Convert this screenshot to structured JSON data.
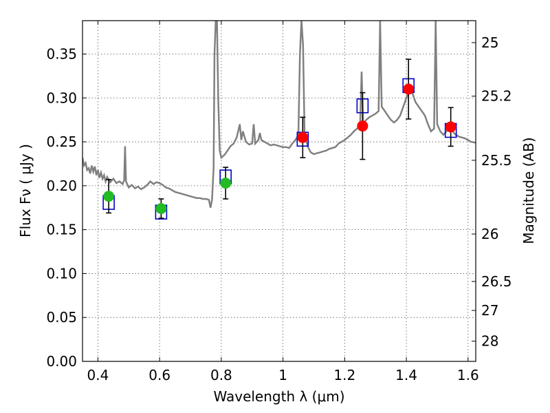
{
  "chart_data": {
    "type": "scatter",
    "xlabel": "Wavelength  λ (μm)",
    "ylabel": "Flux  Fν  ( μJy )",
    "y2label": "Magnitude (AB)",
    "xlim": [
      0.35,
      1.625
    ],
    "ylim": [
      0.0,
      0.388
    ],
    "grid": true,
    "x_ticks": [
      0.4,
      0.6,
      0.8,
      1.0,
      1.2,
      1.4,
      1.6
    ],
    "x_tick_labels": [
      "0.4",
      "0.6",
      "0.8",
      "1",
      "1.2",
      "1.4",
      "1.6"
    ],
    "y_ticks": [
      0.0,
      0.05,
      0.1,
      0.15,
      0.2,
      0.25,
      0.3,
      0.35
    ],
    "y_tick_labels": [
      "0.00",
      "0.05",
      "0.10",
      "0.15",
      "0.20",
      "0.25",
      "0.30",
      "0.35"
    ],
    "y2_ticks": [
      {
        "label": "25",
        "flux": 0.363
      },
      {
        "label": "25.2",
        "flux": 0.302
      },
      {
        "label": "25.5",
        "flux": 0.229
      },
      {
        "label": "26",
        "flux": 0.145
      },
      {
        "label": "26.5",
        "flux": 0.091
      },
      {
        "label": "27",
        "flux": 0.058
      },
      {
        "label": "28",
        "flux": 0.023
      }
    ],
    "colors": {
      "model": "#808080",
      "model_points": "#0000cc",
      "optical": "#22bb22",
      "nir": "#ff0000",
      "errorbar": "#000000",
      "grid": "#555555"
    },
    "model_spectrum": [
      [
        0.35,
        0.232
      ],
      [
        0.355,
        0.223
      ],
      [
        0.36,
        0.226
      ],
      [
        0.365,
        0.218
      ],
      [
        0.37,
        0.22
      ],
      [
        0.375,
        0.214
      ],
      [
        0.38,
        0.223
      ],
      [
        0.385,
        0.216
      ],
      [
        0.39,
        0.222
      ],
      [
        0.395,
        0.212
      ],
      [
        0.4,
        0.218
      ],
      [
        0.405,
        0.209
      ],
      [
        0.41,
        0.215
      ],
      [
        0.415,
        0.208
      ],
      [
        0.42,
        0.212
      ],
      [
        0.425,
        0.205
      ],
      [
        0.43,
        0.21
      ],
      [
        0.44,
        0.204
      ],
      [
        0.45,
        0.208
      ],
      [
        0.46,
        0.203
      ],
      [
        0.47,
        0.205
      ],
      [
        0.48,
        0.202
      ],
      [
        0.485,
        0.206
      ],
      [
        0.488,
        0.245
      ],
      [
        0.491,
        0.205
      ],
      [
        0.5,
        0.198
      ],
      [
        0.51,
        0.201
      ],
      [
        0.52,
        0.197
      ],
      [
        0.53,
        0.199
      ],
      [
        0.54,
        0.196
      ],
      [
        0.55,
        0.198
      ],
      [
        0.56,
        0.201
      ],
      [
        0.57,
        0.205
      ],
      [
        0.58,
        0.202
      ],
      [
        0.59,
        0.204
      ],
      [
        0.6,
        0.203
      ],
      [
        0.61,
        0.201
      ],
      [
        0.62,
        0.198
      ],
      [
        0.63,
        0.197
      ],
      [
        0.64,
        0.195
      ],
      [
        0.65,
        0.193
      ],
      [
        0.66,
        0.192
      ],
      [
        0.67,
        0.191
      ],
      [
        0.68,
        0.19
      ],
      [
        0.69,
        0.189
      ],
      [
        0.7,
        0.188
      ],
      [
        0.71,
        0.187
      ],
      [
        0.72,
        0.186
      ],
      [
        0.73,
        0.186
      ],
      [
        0.74,
        0.185
      ],
      [
        0.75,
        0.185
      ],
      [
        0.76,
        0.184
      ],
      [
        0.765,
        0.175
      ],
      [
        0.77,
        0.184
      ],
      [
        0.775,
        0.22
      ],
      [
        0.778,
        0.35
      ],
      [
        0.782,
        0.388
      ],
      [
        0.786,
        0.388
      ],
      [
        0.79,
        0.3
      ],
      [
        0.795,
        0.24
      ],
      [
        0.8,
        0.232
      ],
      [
        0.81,
        0.235
      ],
      [
        0.82,
        0.24
      ],
      [
        0.83,
        0.245
      ],
      [
        0.84,
        0.248
      ],
      [
        0.85,
        0.255
      ],
      [
        0.86,
        0.27
      ],
      [
        0.865,
        0.252
      ],
      [
        0.87,
        0.262
      ],
      [
        0.88,
        0.25
      ],
      [
        0.89,
        0.247
      ],
      [
        0.9,
        0.248
      ],
      [
        0.905,
        0.27
      ],
      [
        0.91,
        0.248
      ],
      [
        0.92,
        0.252
      ],
      [
        0.925,
        0.26
      ],
      [
        0.93,
        0.252
      ],
      [
        0.94,
        0.25
      ],
      [
        0.95,
        0.248
      ],
      [
        0.96,
        0.246
      ],
      [
        0.97,
        0.247
      ],
      [
        0.98,
        0.246
      ],
      [
        0.99,
        0.245
      ],
      [
        1.0,
        0.244
      ],
      [
        1.01,
        0.244
      ],
      [
        1.02,
        0.243
      ],
      [
        1.03,
        0.248
      ],
      [
        1.04,
        0.252
      ],
      [
        1.05,
        0.258
      ],
      [
        1.055,
        0.35
      ],
      [
        1.06,
        0.388
      ],
      [
        1.065,
        0.36
      ],
      [
        1.07,
        0.26
      ],
      [
        1.08,
        0.245
      ],
      [
        1.09,
        0.238
      ],
      [
        1.1,
        0.236
      ],
      [
        1.11,
        0.237
      ],
      [
        1.12,
        0.238
      ],
      [
        1.13,
        0.239
      ],
      [
        1.14,
        0.24
      ],
      [
        1.15,
        0.242
      ],
      [
        1.16,
        0.243
      ],
      [
        1.17,
        0.244
      ],
      [
        1.18,
        0.248
      ],
      [
        1.19,
        0.25
      ],
      [
        1.2,
        0.252
      ],
      [
        1.21,
        0.255
      ],
      [
        1.22,
        0.258
      ],
      [
        1.23,
        0.262
      ],
      [
        1.24,
        0.265
      ],
      [
        1.25,
        0.268
      ],
      [
        1.255,
        0.33
      ],
      [
        1.26,
        0.27
      ],
      [
        1.27,
        0.275
      ],
      [
        1.28,
        0.278
      ],
      [
        1.29,
        0.28
      ],
      [
        1.3,
        0.282
      ],
      [
        1.31,
        0.285
      ],
      [
        1.315,
        0.388
      ],
      [
        1.32,
        0.29
      ],
      [
        1.33,
        0.285
      ],
      [
        1.34,
        0.28
      ],
      [
        1.35,
        0.275
      ],
      [
        1.36,
        0.272
      ],
      [
        1.37,
        0.275
      ],
      [
        1.38,
        0.28
      ],
      [
        1.39,
        0.29
      ],
      [
        1.4,
        0.3
      ],
      [
        1.41,
        0.31
      ],
      [
        1.42,
        0.305
      ],
      [
        1.43,
        0.295
      ],
      [
        1.44,
        0.29
      ],
      [
        1.45,
        0.285
      ],
      [
        1.46,
        0.28
      ],
      [
        1.47,
        0.27
      ],
      [
        1.48,
        0.262
      ],
      [
        1.49,
        0.265
      ],
      [
        1.495,
        0.388
      ],
      [
        1.5,
        0.27
      ],
      [
        1.51,
        0.262
      ],
      [
        1.52,
        0.258
      ],
      [
        1.53,
        0.262
      ],
      [
        1.54,
        0.265
      ],
      [
        1.55,
        0.262
      ],
      [
        1.56,
        0.258
      ],
      [
        1.57,
        0.256
      ],
      [
        1.58,
        0.255
      ],
      [
        1.59,
        0.254
      ],
      [
        1.6,
        0.252
      ],
      [
        1.61,
        0.25
      ],
      [
        1.625,
        0.249
      ]
    ],
    "model_points": [
      {
        "x": 0.435,
        "y": 0.181
      },
      {
        "x": 0.605,
        "y": 0.17
      },
      {
        "x": 0.814,
        "y": 0.21
      },
      {
        "x": 1.064,
        "y": 0.253
      },
      {
        "x": 1.258,
        "y": 0.291
      },
      {
        "x": 1.407,
        "y": 0.314
      },
      {
        "x": 1.544,
        "y": 0.263
      }
    ],
    "optical_obs": [
      {
        "x": 0.435,
        "y": 0.188,
        "err": 0.019
      },
      {
        "x": 0.605,
        "y": 0.174,
        "err": 0.011
      },
      {
        "x": 0.814,
        "y": 0.203,
        "err": 0.018
      }
    ],
    "nir_obs": [
      {
        "x": 1.064,
        "y": 0.255,
        "err": 0.023
      },
      {
        "x": 1.258,
        "y": 0.268,
        "err": 0.038
      },
      {
        "x": 1.407,
        "y": 0.31,
        "err": 0.034
      },
      {
        "x": 1.544,
        "y": 0.267,
        "err": 0.022
      }
    ]
  }
}
